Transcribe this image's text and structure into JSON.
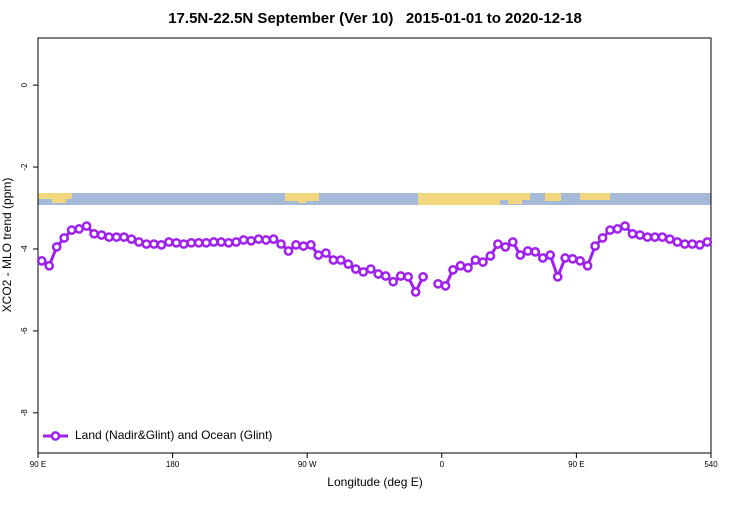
{
  "chart_data": {
    "type": "line",
    "title": "17.5N-22.5N September (Ver 10)   2015-01-01 to 2020-12-18",
    "xlabel": "Longitude (deg E)",
    "ylabel": "XCO2 - MLO trend (ppm)",
    "xlim": [
      90,
      540
    ],
    "ylim": [
      -8.98,
      1.15
    ],
    "xticks": [
      {
        "value": 90,
        "label": "90 E"
      },
      180,
      {
        "value": 270,
        "label": "90 W"
      },
      {
        "value": 360,
        "label": "0"
      },
      {
        "value": 450,
        "label": "90 E"
      },
      540
    ],
    "yticks": [
      0,
      -2,
      -4,
      -6,
      -8
    ],
    "legend": "bottom-left",
    "x": [
      92.5,
      97.5,
      102.5,
      107.5,
      112.5,
      117.5,
      122.5,
      127.5,
      132.5,
      137.5,
      142.5,
      147.5,
      152.5,
      157.5,
      162.5,
      167.5,
      172.5,
      177.5,
      182.5,
      187.5,
      192.5,
      197.5,
      202.5,
      207.5,
      212.5,
      217.5,
      222.5,
      227.5,
      232.5,
      237.5,
      242.5,
      247.5,
      252.5,
      257.5,
      262.5,
      267.5,
      272.5,
      277.5,
      282.5,
      287.5,
      292.5,
      297.5,
      302.5,
      307.5,
      312.5,
      317.5,
      322.5,
      327.5,
      332.5,
      337.5,
      342.5,
      347.5,
      352.5,
      357.5,
      362.5,
      367.5,
      372.5,
      377.5,
      382.5,
      387.5,
      392.5,
      397.5,
      402.5,
      407.5,
      412.5,
      417.5,
      422.5,
      427.5,
      432.5,
      437.5,
      442.5,
      447.5,
      452.5,
      457.5,
      462.5,
      467.5,
      472.5,
      477.5,
      482.5,
      487.5,
      492.5,
      497.5,
      502.5,
      507.5,
      512.5,
      517.5,
      522.5,
      527.5,
      532.5,
      537.5
    ],
    "series": [
      {
        "name": "Land (Nadir&Glint) and Ocean (Glint)",
        "color": "#a020f0",
        "values": [
          -4.29,
          -4.41,
          -3.95,
          -3.73,
          -3.54,
          -3.51,
          -3.44,
          -3.63,
          -3.66,
          -3.71,
          -3.71,
          -3.71,
          -3.76,
          -3.83,
          -3.88,
          -3.88,
          -3.9,
          -3.83,
          -3.85,
          -3.88,
          -3.85,
          -3.85,
          -3.85,
          -3.83,
          -3.83,
          -3.85,
          -3.83,
          -3.78,
          -3.8,
          -3.76,
          -3.78,
          -3.76,
          -3.88,
          -4.05,
          -3.9,
          -3.93,
          -3.9,
          -4.15,
          -4.1,
          -4.27,
          -4.27,
          -4.37,
          -4.49,
          -4.56,
          -4.49,
          -4.61,
          -4.66,
          -4.8,
          -4.66,
          -4.68,
          -5.05,
          -4.68,
          null,
          -4.85,
          -4.9,
          -4.51,
          -4.41,
          -4.46,
          -4.27,
          -4.32,
          -4.17,
          -3.88,
          -3.95,
          -3.83,
          -4.15,
          -4.05,
          -4.07,
          -4.22,
          -4.15,
          -4.68,
          -4.22,
          -4.24,
          -4.29,
          -4.41,
          -3.93,
          -3.73,
          -3.54,
          -3.51,
          -3.44,
          -3.63,
          -3.66,
          -3.71,
          -3.71,
          -3.71,
          -3.76,
          -3.83,
          -3.88,
          -3.88,
          -3.9,
          -3.83
        ]
      }
    ]
  }
}
